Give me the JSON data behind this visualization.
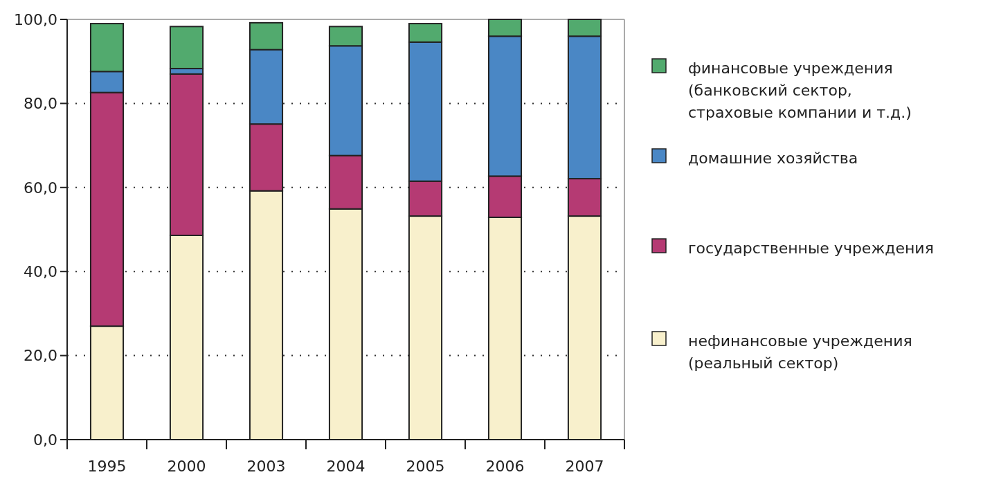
{
  "chart_data": {
    "type": "bar",
    "stacked": true,
    "categories": [
      "1995",
      "2000",
      "2003",
      "2004",
      "2005",
      "2006",
      "2007"
    ],
    "series": [
      {
        "name": "нефинансовые учреждения (реальный сектор)",
        "color": "#f8f0cc",
        "values": [
          27.0,
          48.6,
          59.2,
          54.9,
          53.2,
          52.9,
          53.2
        ]
      },
      {
        "name": "государственные учреждения",
        "color": "#b53a73",
        "values": [
          55.6,
          38.4,
          15.9,
          12.7,
          8.3,
          9.8,
          8.9
        ]
      },
      {
        "name": "домашние хозяйства",
        "color": "#4a87c5",
        "values": [
          5.0,
          1.3,
          17.7,
          26.1,
          33.1,
          33.3,
          33.9
        ]
      },
      {
        "name": "финансовые учреждения (банковский сектор, страховые компании и т.д.)",
        "color": "#52aa6e",
        "values": [
          11.4,
          10.0,
          6.4,
          4.6,
          4.4,
          4.0,
          4.0
        ]
      }
    ],
    "ylim": [
      0,
      100
    ],
    "yticks": [
      {
        "value": 0,
        "label": "0,0"
      },
      {
        "value": 20,
        "label": "20,0"
      },
      {
        "value": 40,
        "label": "40,0"
      },
      {
        "value": 60,
        "label": "60,0"
      },
      {
        "value": 80,
        "label": "80,0"
      },
      {
        "value": 100,
        "label": "100,0"
      }
    ],
    "grid": "y",
    "legend": "right"
  }
}
